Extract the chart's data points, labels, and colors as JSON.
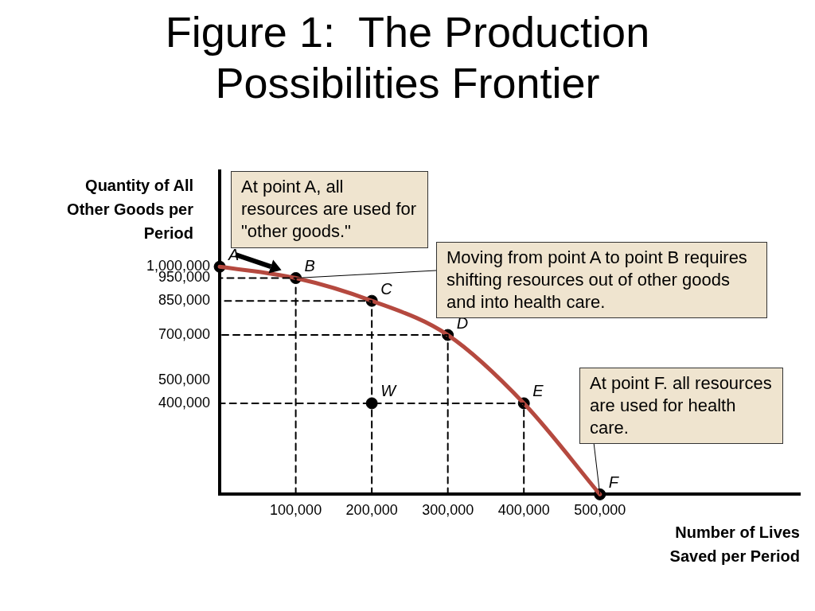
{
  "chart_data": {
    "type": "line",
    "title": "Figure 1:  The Production Possibilities Frontier",
    "xlabel": "Number of Lives Saved per Period",
    "ylabel": "Quantity of All Other Goods per Period",
    "xlim": [
      0,
      763000
    ],
    "ylim": [
      0,
      1420000
    ],
    "xticks": [
      {
        "value": 100000,
        "label": "100,000"
      },
      {
        "value": 200000,
        "label": "200,000"
      },
      {
        "value": 300000,
        "label": "300,000"
      },
      {
        "value": 400000,
        "label": "400,000"
      },
      {
        "value": 500000,
        "label": "500,000"
      }
    ],
    "yticks": [
      {
        "value": 400000,
        "label": "400,000"
      },
      {
        "value": 500000,
        "label": "500,000"
      },
      {
        "value": 700000,
        "label": "700,000"
      },
      {
        "value": 850000,
        "label": "850,000"
      },
      {
        "value": 950000,
        "label": "950,000"
      },
      {
        "value": 1000000,
        "label": "1,000,000"
      }
    ],
    "grid": false,
    "legend": false,
    "series": [
      {
        "type": "line",
        "color": "#000000",
        "line_style": "dashed",
        "marker": "none",
        "x": [
          100000,
          100000,
          0
        ],
        "values": [
          0,
          950000,
          950000
        ]
      },
      {
        "type": "line",
        "color": "#000000",
        "line_style": "dashed",
        "marker": "none",
        "x": [
          200000,
          200000,
          0
        ],
        "values": [
          0,
          850000,
          850000
        ]
      },
      {
        "type": "line",
        "color": "#000000",
        "line_style": "dashed",
        "marker": "none",
        "x": [
          300000,
          300000,
          0
        ],
        "values": [
          0,
          700000,
          700000
        ]
      },
      {
        "type": "line",
        "color": "#000000",
        "line_style": "dashed",
        "marker": "none",
        "x": [
          400000,
          400000,
          0
        ],
        "values": [
          0,
          400000,
          400000
        ]
      },
      {
        "type": "line",
        "color": "#b5493f",
        "line_style": "solid",
        "marker": "none",
        "x": [
          0,
          100000,
          200000,
          300000,
          400000,
          500000
        ],
        "values": [
          1000000,
          950000,
          850000,
          700000,
          400000,
          0
        ]
      },
      {
        "type": "scatter",
        "color": "#000000",
        "marker": "circle",
        "x": [
          0,
          100000,
          200000,
          300000,
          400000,
          500000,
          200000
        ],
        "values": [
          1000000,
          950000,
          850000,
          700000,
          400000,
          0,
          400000
        ]
      }
    ],
    "annotations": [
      "At point A, all resources are used for \"other goods.\"",
      {
        "text": "Moving from point A to point B requires shifting resources out of other goods and into health care.",
        "x": 100000,
        "y": 950000
      },
      {
        "text": "At point F. all resources are used for health care.",
        "x": 500000,
        "y": 0
      },
      {
        "text": "A",
        "x": 0,
        "y": 1000000
      },
      {
        "text": "B",
        "x": 100000,
        "y": 950000
      },
      {
        "text": "C",
        "x": 200000,
        "y": 850000
      },
      {
        "text": "D",
        "x": 300000,
        "y": 700000
      },
      {
        "text": "E",
        "x": 400000,
        "y": 400000
      },
      {
        "text": "W",
        "x": 200000,
        "y": 400000
      },
      {
        "text": "F",
        "x": 500000,
        "y": 0
      }
    ]
  }
}
